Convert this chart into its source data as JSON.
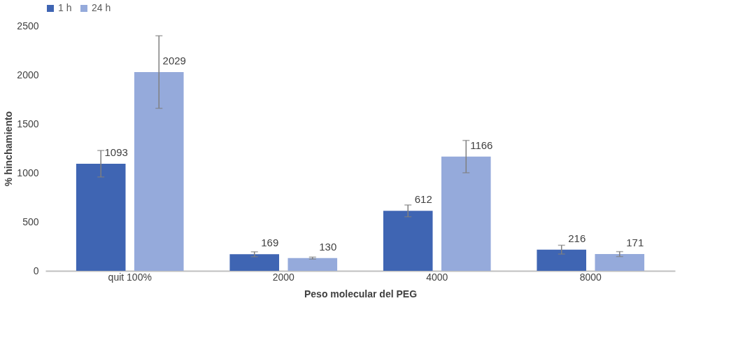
{
  "chart_data": {
    "type": "bar",
    "xlabel": "Peso molecular del PEG",
    "ylabel": "% hinchamiento",
    "categories": [
      "quit 100%",
      "2000",
      "4000",
      "8000"
    ],
    "series": [
      {
        "name": "1 h",
        "color": "#3f65b3",
        "values": [
          1093,
          169,
          612,
          216
        ],
        "errors": [
          135,
          25,
          60,
          45
        ]
      },
      {
        "name": "24 h",
        "color": "#95aadb",
        "values": [
          2029,
          130,
          1166,
          171
        ],
        "errors": [
          370,
          10,
          165,
          25
        ]
      }
    ],
    "ylim": [
      0,
      2500
    ],
    "yticks": [
      0,
      500,
      1000,
      1500,
      2000,
      2500
    ],
    "grid": false,
    "legend": "top",
    "data_labels": true
  }
}
